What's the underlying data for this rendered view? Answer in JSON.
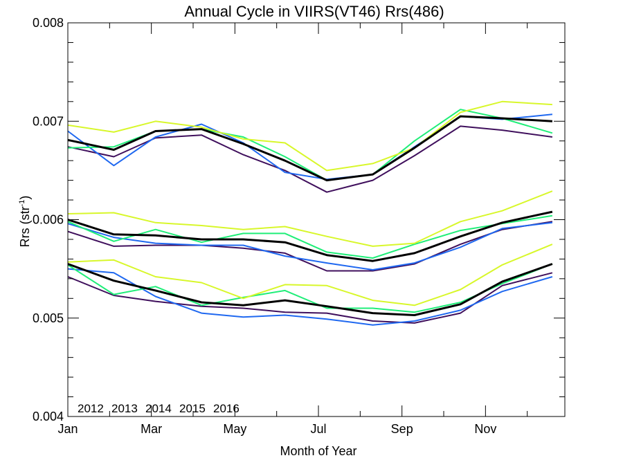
{
  "chart_data": {
    "type": "line",
    "title": "Annual Cycle in VIIRS(VT46) Rrs(486)",
    "xlabel": "Month of Year",
    "ylabel_main": "Rrs (str",
    "ylabel_sup": "-1",
    "ylabel_close": ")",
    "xlim": [
      1,
      12.9
    ],
    "ylim": [
      0.004,
      0.008
    ],
    "x_ticks": [
      {
        "value": 1,
        "label": "Jan"
      },
      {
        "value": 3,
        "label": "Mar"
      },
      {
        "value": 5,
        "label": "May"
      },
      {
        "value": 7,
        "label": "Jul"
      },
      {
        "value": 9,
        "label": "Sep"
      },
      {
        "value": 11,
        "label": "Nov"
      }
    ],
    "x_minor_ticks": [
      2,
      4,
      6,
      8,
      10,
      12
    ],
    "y_ticks": [
      {
        "value": 0.004,
        "label": "0.004"
      },
      {
        "value": 0.005,
        "label": "0.005"
      },
      {
        "value": 0.006,
        "label": "0.006"
      },
      {
        "value": 0.007,
        "label": "0.007"
      },
      {
        "value": 0.008,
        "label": "0.008"
      }
    ],
    "y_minor_step": 0.0002,
    "grid": false,
    "legend_position": "bottom-left",
    "legend": [
      {
        "label": "2012",
        "color": "#3f0f5c"
      },
      {
        "label": "2013",
        "color": "#1f68f0"
      },
      {
        "label": "2014",
        "color": "#1fee78"
      },
      {
        "label": "2015",
        "color": "#d8f72a"
      },
      {
        "label": "2016",
        "color": "#e8141c"
      }
    ],
    "x": [
      1,
      2.1,
      3.1,
      4.2,
      5.2,
      6.2,
      7.2,
      8.3,
      9.3,
      10.4,
      11.4,
      12.6
    ],
    "series": [
      {
        "name": "2012",
        "color": "#3f0f5c",
        "values": [
          0.00674,
          0.00664,
          0.00683,
          0.00686,
          0.00666,
          0.0065,
          0.00628,
          0.0064,
          0.00665,
          0.00695,
          0.00691,
          0.00684
        ]
      },
      {
        "name": "2013",
        "color": "#1f68f0",
        "values": [
          0.0069,
          0.00655,
          0.00684,
          0.00697,
          0.00678,
          0.00648,
          0.00641,
          0.00646,
          0.00674,
          0.00705,
          0.00702,
          0.00707
        ]
      },
      {
        "name": "2014",
        "color": "#1fee78",
        "values": [
          0.00673,
          0.00674,
          0.0069,
          0.00692,
          0.00684,
          0.00664,
          0.0064,
          0.00646,
          0.0068,
          0.00712,
          0.00703,
          0.00688
        ]
      },
      {
        "name": "2015",
        "color": "#d8f72a",
        "values": [
          0.00696,
          0.00689,
          0.007,
          0.00694,
          0.00682,
          0.00678,
          0.0065,
          0.00657,
          0.00673,
          0.00709,
          0.0072,
          0.00717
        ]
      },
      {
        "name": "",
        "color": "#000000",
        "values": [
          0.00681,
          0.00671,
          0.0069,
          0.00692,
          0.00677,
          0.0066,
          0.0064,
          0.00646,
          0.00673,
          0.00705,
          0.00703,
          0.007
        ]
      },
      {
        "name": "2012",
        "color": "#3f0f5c",
        "values": [
          0.00588,
          0.00573,
          0.00574,
          0.00574,
          0.00571,
          0.00566,
          0.00548,
          0.00548,
          0.00555,
          0.00575,
          0.0059,
          0.00598
        ]
      },
      {
        "name": "2013",
        "color": "#1f68f0",
        "values": [
          0.00596,
          0.00582,
          0.00576,
          0.00574,
          0.00574,
          0.00563,
          0.00556,
          0.00549,
          0.00556,
          0.00572,
          0.00591,
          0.00597
        ]
      },
      {
        "name": "2014",
        "color": "#1fee78",
        "values": [
          0.00598,
          0.00578,
          0.0059,
          0.00577,
          0.00586,
          0.00586,
          0.00567,
          0.00561,
          0.00575,
          0.00589,
          0.00596,
          0.00604
        ]
      },
      {
        "name": "2015",
        "color": "#d8f72a",
        "values": [
          0.00606,
          0.00607,
          0.00597,
          0.00594,
          0.0059,
          0.00593,
          0.00583,
          0.00573,
          0.00576,
          0.00598,
          0.00609,
          0.00629
        ]
      },
      {
        "name": "",
        "color": "#000000",
        "values": [
          0.006,
          0.00585,
          0.00584,
          0.0058,
          0.0058,
          0.00577,
          0.00564,
          0.00558,
          0.00566,
          0.00583,
          0.00597,
          0.00608
        ]
      },
      {
        "name": "2012",
        "color": "#3f0f5c",
        "values": [
          0.00542,
          0.00523,
          0.00517,
          0.00512,
          0.0051,
          0.00506,
          0.00505,
          0.00497,
          0.00495,
          0.00505,
          0.00533,
          0.00546
        ]
      },
      {
        "name": "2013",
        "color": "#1f68f0",
        "values": [
          0.0055,
          0.00546,
          0.00522,
          0.00505,
          0.00501,
          0.00503,
          0.00499,
          0.00493,
          0.00497,
          0.00508,
          0.00527,
          0.00542
        ]
      },
      {
        "name": "2014",
        "color": "#1fee78",
        "values": [
          0.00554,
          0.00524,
          0.00532,
          0.00513,
          0.00521,
          0.00528,
          0.0051,
          0.0051,
          0.00506,
          0.00516,
          0.00535,
          0.00555
        ]
      },
      {
        "name": "2015",
        "color": "#d8f72a",
        "values": [
          0.00557,
          0.00559,
          0.00542,
          0.00536,
          0.0052,
          0.00534,
          0.00533,
          0.00518,
          0.00513,
          0.00529,
          0.00554,
          0.00575
        ]
      },
      {
        "name": "",
        "color": "#000000",
        "values": [
          0.00555,
          0.00538,
          0.00528,
          0.00516,
          0.00513,
          0.00518,
          0.00512,
          0.00505,
          0.00503,
          0.00514,
          0.00537,
          0.00555
        ]
      }
    ]
  }
}
